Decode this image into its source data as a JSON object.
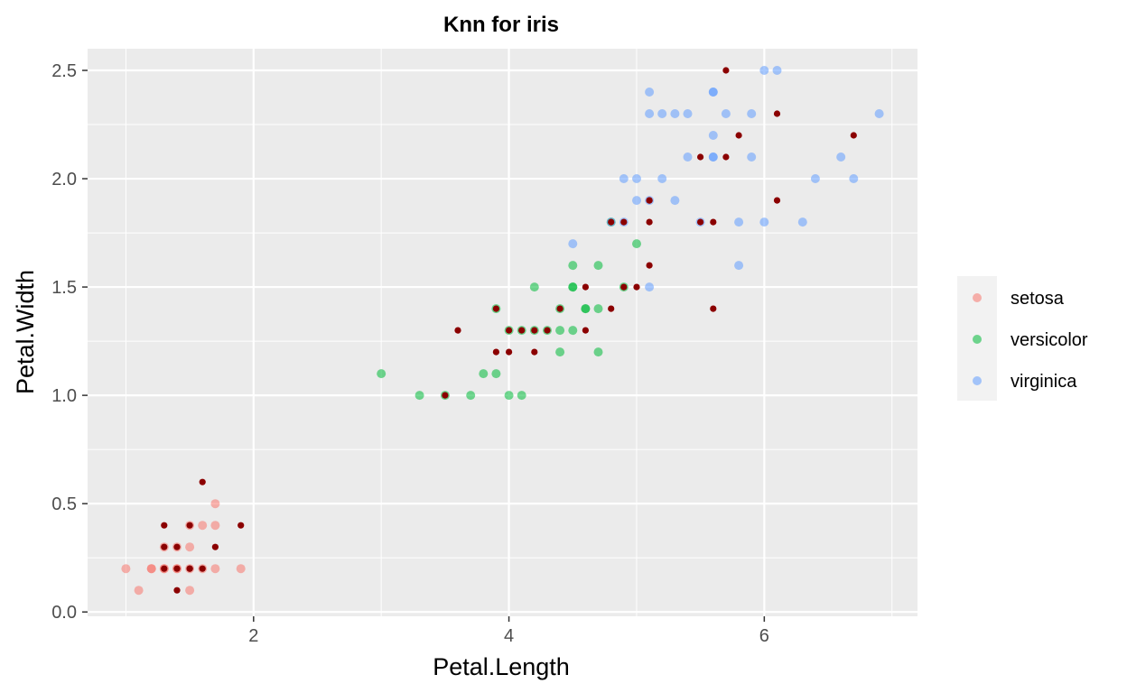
{
  "chart_data": {
    "type": "scatter",
    "title": "Knn for iris",
    "xlabel": "Petal.Length",
    "ylabel": "Petal.Width",
    "xlim": [
      0.7,
      7.2
    ],
    "ylim": [
      -0.02,
      2.6
    ],
    "x_ticks": [
      2,
      4,
      6
    ],
    "x_tick_labels": [
      "2",
      "4",
      "6"
    ],
    "y_ticks": [
      0,
      0.5,
      1,
      1.5,
      2,
      2.5
    ],
    "y_tick_labels": [
      "0.0",
      "0.5",
      "1.0",
      "1.5",
      "2.0",
      "2.5"
    ],
    "grid": true,
    "legend_position": "right",
    "legend": [
      "setosa",
      "versicolor",
      "virginica"
    ],
    "colors": {
      "setosa": "#f8766d",
      "versicolor": "#00ba38",
      "virginica": "#619cff",
      "misclassified": "#8b0000",
      "panel": "#ebebeb",
      "grid": "#ffffff"
    },
    "series": [
      {
        "name": "setosa",
        "x": [
          1.0,
          1.1,
          1.2,
          1.2,
          1.3,
          1.3,
          1.4,
          1.4,
          1.5,
          1.5,
          1.5,
          1.5,
          1.6,
          1.6,
          1.7,
          1.7,
          1.7,
          1.9,
          1.4,
          1.3
        ],
        "y": [
          0.2,
          0.1,
          0.2,
          0.2,
          0.2,
          0.3,
          0.2,
          0.3,
          0.1,
          0.2,
          0.3,
          0.4,
          0.2,
          0.4,
          0.2,
          0.4,
          0.5,
          0.2,
          0.2,
          0.2
        ]
      },
      {
        "name": "versicolor",
        "x": [
          3.0,
          3.3,
          3.5,
          3.7,
          3.8,
          3.9,
          3.9,
          4.0,
          4.0,
          4.1,
          4.1,
          4.2,
          4.2,
          4.3,
          4.4,
          4.4,
          4.4,
          4.5,
          4.5,
          4.5,
          4.6,
          4.7,
          4.7,
          4.7,
          4.8,
          4.9,
          5.0,
          4.5,
          4.6
        ],
        "y": [
          1.1,
          1.0,
          1.0,
          1.0,
          1.1,
          1.1,
          1.4,
          1.0,
          1.3,
          1.0,
          1.3,
          1.3,
          1.5,
          1.3,
          1.2,
          1.3,
          1.4,
          1.3,
          1.5,
          1.6,
          1.4,
          1.2,
          1.4,
          1.6,
          1.8,
          1.5,
          1.7,
          1.5,
          1.4
        ]
      },
      {
        "name": "virginica",
        "x": [
          4.5,
          4.8,
          4.9,
          4.9,
          5.0,
          5.0,
          5.1,
          5.1,
          5.1,
          5.1,
          5.2,
          5.2,
          5.3,
          5.3,
          5.4,
          5.4,
          5.5,
          5.6,
          5.6,
          5.6,
          5.6,
          5.7,
          5.8,
          5.8,
          5.9,
          5.9,
          6.0,
          6.0,
          6.1,
          6.3,
          6.4,
          6.6,
          6.7,
          6.9,
          5.6
        ],
        "y": [
          1.7,
          1.8,
          1.8,
          2.0,
          1.9,
          2.0,
          1.5,
          1.9,
          2.3,
          2.4,
          2.0,
          2.3,
          1.9,
          2.3,
          2.1,
          2.3,
          1.8,
          2.1,
          2.2,
          2.4,
          2.4,
          2.3,
          1.6,
          1.8,
          2.1,
          2.3,
          1.8,
          2.5,
          2.5,
          1.8,
          2.0,
          2.1,
          2.0,
          2.3,
          2.1
        ]
      },
      {
        "name": "",
        "x": [
          1.3,
          1.3,
          1.4,
          1.4,
          1.4,
          1.5,
          1.5,
          1.6,
          1.6,
          1.7,
          1.9,
          1.3,
          1.5,
          3.5,
          3.6,
          3.9,
          3.9,
          4.0,
          4.0,
          4.1,
          4.2,
          4.2,
          4.3,
          4.4,
          4.6,
          4.6,
          4.8,
          4.8,
          4.9,
          4.9,
          5.0,
          5.1,
          5.1,
          5.1,
          5.5,
          5.5,
          5.6,
          5.6,
          5.7,
          5.7,
          5.8,
          6.1,
          6.1,
          6.7,
          5.1
        ],
        "y": [
          0.3,
          0.4,
          0.1,
          0.2,
          0.3,
          0.2,
          0.4,
          0.2,
          0.6,
          0.3,
          0.4,
          0.2,
          0.2,
          1.0,
          1.3,
          1.2,
          1.4,
          1.2,
          1.3,
          1.3,
          1.2,
          1.3,
          1.3,
          1.4,
          1.3,
          1.5,
          1.4,
          1.8,
          1.5,
          1.8,
          1.5,
          1.6,
          1.8,
          1.9,
          1.8,
          2.1,
          1.4,
          1.8,
          2.1,
          2.5,
          2.2,
          1.9,
          2.3,
          2.2,
          1.9
        ]
      }
    ]
  }
}
